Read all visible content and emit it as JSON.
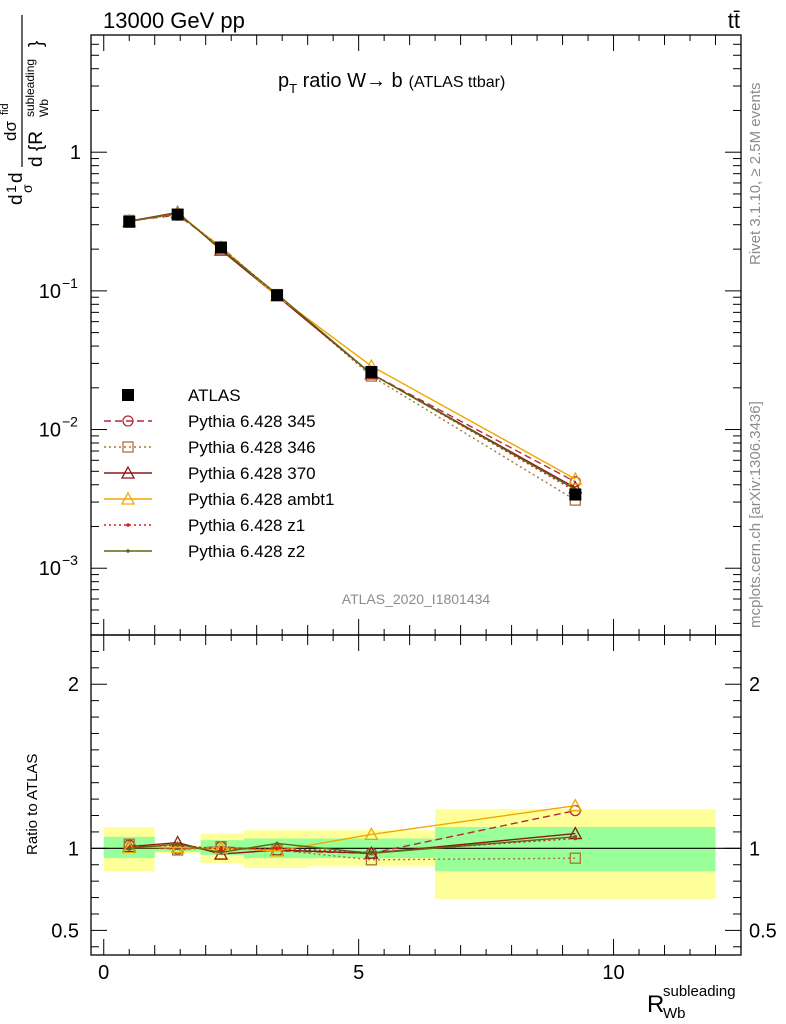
{
  "header": {
    "left": "13000 GeV pp",
    "right": "tt̄"
  },
  "side_labels": {
    "rivet": "Rivet 3.1.10, ≥ 2.5M events",
    "mcplots": "mcplots.cern.ch [arXiv:1306.3436]"
  },
  "chart_data": [
    {
      "type": "line",
      "panel": "main",
      "title_main": "p",
      "title_sub": "T",
      "title_rest": " ratio W→ b",
      "title_small": "(ATLAS ttbar)",
      "ylabel": "1/σ dσ/d{R_Wb^subleading}",
      "ylabel_parts": {
        "num_top": "1",
        "num_bot": "σ",
        "d": "d",
        "frac_top": "dσ",
        "frac_top_sup": "fid",
        "frac_bot": "d {R",
        "frac_bot_sub": "Wb",
        "frac_bot_sup": "subleading",
        "frac_bot_end": "}"
      },
      "yscale": "log",
      "ylim": [
        0.00033,
        7.0
      ],
      "xlim": [
        -0.25,
        12.5
      ],
      "grid": false,
      "legend_position": "left-middle",
      "watermark": "ATLAS_2020_I1801434",
      "y_ticks": [
        {
          "value": 1,
          "label": "1"
        },
        {
          "value": 0.1,
          "label": "10",
          "sup": "−1"
        },
        {
          "value": 0.01,
          "label": "10",
          "sup": "−2"
        },
        {
          "value": 0.001,
          "label": "10",
          "sup": "−3"
        }
      ],
      "x": [
        0.5,
        1.45,
        2.3,
        3.4,
        5.25,
        9.25
      ],
      "series": [
        {
          "name": "ATLAS",
          "color": "#000000",
          "marker": "square-filled",
          "line": "none",
          "values": [
            0.315,
            0.355,
            0.205,
            0.093,
            0.026,
            0.0034
          ]
        },
        {
          "name": "Pythia 6.428 345",
          "color": "#b22b3a",
          "marker": "circle-open",
          "line": "dashed",
          "values": [
            0.32,
            0.352,
            0.208,
            0.092,
            0.0252,
            0.0042
          ]
        },
        {
          "name": "Pythia 6.428 346",
          "color": "#a87532",
          "marker": "square-open",
          "line": "dotted",
          "values": [
            0.322,
            0.354,
            0.207,
            0.094,
            0.0243,
            0.0031
          ]
        },
        {
          "name": "Pythia 6.428 370",
          "color": "#8b1a1a",
          "marker": "triangle-open",
          "line": "solid",
          "values": [
            0.318,
            0.368,
            0.197,
            0.092,
            0.0252,
            0.0038
          ]
        },
        {
          "name": "Pythia 6.428 ambt1",
          "color": "#f0a800",
          "marker": "triangle-open",
          "line": "solid",
          "values": [
            0.316,
            0.363,
            0.206,
            0.092,
            0.0287,
            0.0044
          ]
        },
        {
          "name": "Pythia 6.428 z1",
          "color": "#d81e1e",
          "marker": "dot",
          "line": "dotted",
          "values": [
            0.317,
            0.362,
            0.204,
            0.093,
            0.0253,
            0.0036
          ]
        },
        {
          "name": "Pythia 6.428 z2",
          "color": "#5c6a12",
          "marker": "dot",
          "line": "solid",
          "values": [
            0.316,
            0.365,
            0.2,
            0.095,
            0.0252,
            0.0037
          ]
        }
      ]
    },
    {
      "type": "line",
      "panel": "ratio",
      "ylabel": "Ratio to ATLAS",
      "xlabel": "R",
      "xlabel_sub": "Wb",
      "xlabel_sup": "subleading",
      "ylim": [
        0.35,
        2.3
      ],
      "xlim": [
        -0.25,
        12.5
      ],
      "reference_line": 1.0,
      "x_ticks": [
        {
          "value": 0,
          "label": "0"
        },
        {
          "value": 5,
          "label": "5"
        },
        {
          "value": 10,
          "label": "10"
        }
      ],
      "y_ticks": [
        {
          "value": 0.5,
          "label": "0.5"
        },
        {
          "value": 1,
          "label": "1"
        },
        {
          "value": 2,
          "label": "2"
        }
      ],
      "uncertainty_bands": [
        {
          "x0": 0.0,
          "x1": 1.0,
          "inner": [
            0.94,
            1.07
          ],
          "outer": [
            0.86,
            1.13
          ]
        },
        {
          "x0": 1.0,
          "x1": 1.9,
          "inner": [
            0.98,
            1.01
          ],
          "outer": [
            0.97,
            1.02
          ]
        },
        {
          "x0": 1.9,
          "x1": 2.75,
          "inner": [
            0.96,
            1.05
          ],
          "outer": [
            0.91,
            1.09
          ]
        },
        {
          "x0": 2.75,
          "x1": 4.0,
          "inner": [
            0.94,
            1.06
          ],
          "outer": [
            0.88,
            1.11
          ]
        },
        {
          "x0": 4.0,
          "x1": 6.5,
          "inner": [
            0.94,
            1.06
          ],
          "outer": [
            0.89,
            1.11
          ]
        },
        {
          "x0": 6.5,
          "x1": 12.0,
          "inner": [
            0.86,
            1.13
          ],
          "outer": [
            0.69,
            1.24
          ]
        }
      ],
      "x": [
        0.5,
        1.45,
        2.3,
        3.4,
        5.25,
        9.25
      ],
      "series": [
        {
          "name": "Pythia 6.428 345",
          "values": [
            1.02,
            0.995,
            1.01,
            0.985,
            0.97,
            1.23
          ]
        },
        {
          "name": "Pythia 6.428 346",
          "values": [
            1.025,
            0.99,
            1.01,
            0.99,
            0.93,
            0.94
          ]
        },
        {
          "name": "Pythia 6.428 370",
          "values": [
            1.01,
            1.035,
            0.965,
            0.99,
            0.97,
            1.09
          ]
        },
        {
          "name": "Pythia 6.428 ambt1",
          "values": [
            1.005,
            1.005,
            1.0,
            0.985,
            1.085,
            1.26
          ]
        },
        {
          "name": "Pythia 6.428 z1",
          "values": [
            1.005,
            1.02,
            0.995,
            1.0,
            0.975,
            1.06
          ]
        },
        {
          "name": "Pythia 6.428 z2",
          "values": [
            1.0,
            1.025,
            0.975,
            1.03,
            0.97,
            1.07
          ]
        }
      ]
    }
  ]
}
